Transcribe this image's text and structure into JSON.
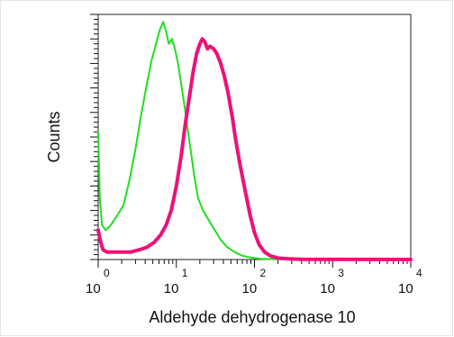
{
  "chart_data": {
    "type": "line",
    "title": "",
    "xlabel": "Aldehyde dehydrogenase 10",
    "ylabel": "Counts",
    "x_scale": "log",
    "xlim": [
      1,
      10000
    ],
    "ylim": [
      0,
      100
    ],
    "grid": false,
    "legend": "none",
    "x_ticks": [
      {
        "base": "10",
        "exp": "0",
        "value": 1
      },
      {
        "base": "10",
        "exp": "1",
        "value": 10
      },
      {
        "base": "10",
        "exp": "2",
        "value": 100
      },
      {
        "base": "10",
        "exp": "3",
        "value": 1000
      },
      {
        "base": "10",
        "exp": "4",
        "value": 10000
      }
    ],
    "series": [
      {
        "color": "#22dd22",
        "points": [
          [
            1.0,
            52
          ],
          [
            1.05,
            25
          ],
          [
            1.12,
            14
          ],
          [
            1.25,
            12
          ],
          [
            1.45,
            14
          ],
          [
            1.75,
            18
          ],
          [
            2.1,
            22
          ],
          [
            2.5,
            32
          ],
          [
            3.0,
            45
          ],
          [
            3.5,
            58
          ],
          [
            4.1,
            70
          ],
          [
            4.8,
            81
          ],
          [
            5.5,
            88
          ],
          [
            6.2,
            94
          ],
          [
            6.8,
            97
          ],
          [
            7.4,
            93
          ],
          [
            8.0,
            88
          ],
          [
            8.8,
            90
          ],
          [
            9.6,
            86
          ],
          [
            10.5,
            80
          ],
          [
            11.5,
            72
          ],
          [
            12.8,
            62
          ],
          [
            14,
            53
          ],
          [
            15.5,
            43
          ],
          [
            17,
            34
          ],
          [
            19,
            25
          ],
          [
            22,
            20
          ],
          [
            26,
            16
          ],
          [
            31,
            12
          ],
          [
            37,
            8
          ],
          [
            45,
            5
          ],
          [
            56,
            3
          ],
          [
            70,
            1.5
          ],
          [
            90,
            0.8
          ],
          [
            120,
            0.3
          ],
          [
            200,
            0.1
          ],
          [
            10000,
            0
          ]
        ]
      },
      {
        "color": "#ee1177",
        "points": [
          [
            1.0,
            12
          ],
          [
            1.06,
            8
          ],
          [
            1.15,
            4
          ],
          [
            1.3,
            3
          ],
          [
            1.6,
            3
          ],
          [
            2.0,
            3
          ],
          [
            2.6,
            3
          ],
          [
            3.4,
            4
          ],
          [
            4.2,
            5
          ],
          [
            5.2,
            7
          ],
          [
            6.3,
            10
          ],
          [
            7.4,
            14
          ],
          [
            8.6,
            20
          ],
          [
            10,
            30
          ],
          [
            11.5,
            42
          ],
          [
            13,
            55
          ],
          [
            14.8,
            67
          ],
          [
            16.5,
            77
          ],
          [
            18.2,
            84
          ],
          [
            20,
            88
          ],
          [
            21.5,
            90
          ],
          [
            23,
            89
          ],
          [
            25,
            86
          ],
          [
            27,
            87
          ],
          [
            30,
            86
          ],
          [
            33,
            84
          ],
          [
            37,
            80
          ],
          [
            41,
            75
          ],
          [
            46,
            68
          ],
          [
            52,
            58
          ],
          [
            58,
            48
          ],
          [
            66,
            38
          ],
          [
            76,
            28
          ],
          [
            88,
            18
          ],
          [
            100,
            11
          ],
          [
            115,
            6
          ],
          [
            135,
            3
          ],
          [
            160,
            1.5
          ],
          [
            200,
            0.6
          ],
          [
            280,
            0.3
          ],
          [
            400,
            0.1
          ],
          [
            10000,
            0
          ]
        ]
      }
    ]
  }
}
